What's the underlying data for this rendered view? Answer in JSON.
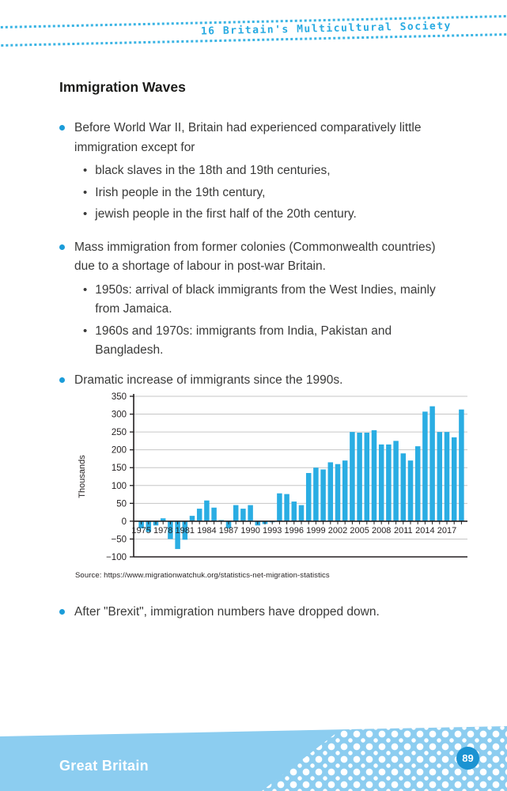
{
  "header": {
    "chapter_label": "16 Britain's Multicultural Society"
  },
  "title": "Immigration Waves",
  "sections": [
    {
      "text": "Before World War II, Britain had experienced comparatively little immigration except for",
      "subs": [
        "black slaves in the 18th and 19th centuries,",
        "Irish people in the 19th century,",
        "jewish people in the first half of the 20th century."
      ]
    },
    {
      "text": "Mass immigration from former colonies (Commonwealth countries) due to a shortage of labour in post-war Britain.",
      "subs": [
        "1950s: arrival of black immigrants from the West Indies, mainly from Jamaica.",
        "1960s and 1970s: immigrants from India, Pakistan and Bangladesh."
      ]
    },
    {
      "text": "Dramatic increase of immigrants since the 1990s.",
      "subs": []
    }
  ],
  "chart_data": {
    "type": "bar",
    "title": "",
    "xlabel": "",
    "ylabel": "Thousands",
    "unit": "thousands (net migration per year)",
    "bar_color": "#2aade3",
    "grid": true,
    "legend": "none",
    "ylim": [
      -100,
      350
    ],
    "yticks": [
      350,
      300,
      250,
      200,
      150,
      100,
      50,
      0,
      -50,
      -100
    ],
    "xtick_labels": [
      "1975",
      "1978",
      "1981",
      "1984",
      "1987",
      "1990",
      "1993",
      "1996",
      "1999",
      "2002",
      "2005",
      "2008",
      "2011",
      "2014",
      "2017"
    ],
    "x": [
      1975,
      1976,
      1977,
      1978,
      1979,
      1980,
      1981,
      1982,
      1983,
      1984,
      1985,
      1986,
      1987,
      1988,
      1989,
      1990,
      1991,
      1992,
      1993,
      1994,
      1995,
      1996,
      1997,
      1998,
      1999,
      2000,
      2001,
      2002,
      2003,
      2004,
      2005,
      2006,
      2007,
      2008,
      2009,
      2010,
      2011,
      2012,
      2013,
      2014,
      2015,
      2016,
      2017,
      2018,
      2019
    ],
    "values": [
      -20,
      -30,
      -12,
      8,
      -50,
      -78,
      -52,
      15,
      35,
      58,
      38,
      3,
      -20,
      45,
      35,
      45,
      -12,
      -8,
      -3,
      78,
      76,
      55,
      45,
      135,
      150,
      145,
      165,
      160,
      170,
      250,
      248,
      248,
      255,
      215,
      215,
      225,
      190,
      170,
      210,
      307,
      322,
      250,
      250,
      235,
      313
    ]
  },
  "source_caption": "Source: https://www.migrationwatchuk.org/statistics-net-migration-statistics",
  "brexit_bullet": "After \"Brexit\", immigration numbers have dropped down.",
  "footer": {
    "label": "Great Britain",
    "page_number": "89"
  },
  "colors": {
    "accent_blue": "#29abe2",
    "bullet_blue": "#1b9cd9",
    "footer_band": "#8ccdf0",
    "page_badge": "#1b93d2",
    "body_text": "#3a3a39",
    "axis_black": "#231f20",
    "gridline_gray": "#c6c6c6"
  }
}
